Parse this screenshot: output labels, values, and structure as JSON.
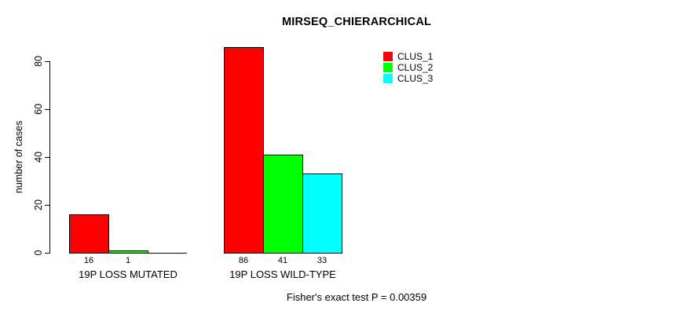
{
  "chart_data": {
    "type": "bar",
    "title": "MIRSEQ_CHIERARCHICAL",
    "ylabel": "number of cases",
    "xlabel": "",
    "categories": [
      "19P LOSS MUTATED",
      "19P LOSS WILD-TYPE"
    ],
    "series": [
      {
        "name": "CLUS_1",
        "color": "#FF0000",
        "values": [
          16,
          86
        ]
      },
      {
        "name": "CLUS_2",
        "color": "#00FF00",
        "values": [
          1,
          41
        ]
      },
      {
        "name": "CLUS_3",
        "color": "#00FFFF",
        "values": [
          0,
          33
        ]
      }
    ],
    "yticks": [
      0,
      20,
      40,
      60,
      80
    ],
    "ylim": [
      0,
      86
    ],
    "bar_value_labels_shown": true,
    "legend_position": "top-right",
    "grid": false,
    "background": "#FFFFFF",
    "bar_border_color": "#000000"
  },
  "footer": {
    "text": "Fisher's exact test P = 0.00359"
  }
}
